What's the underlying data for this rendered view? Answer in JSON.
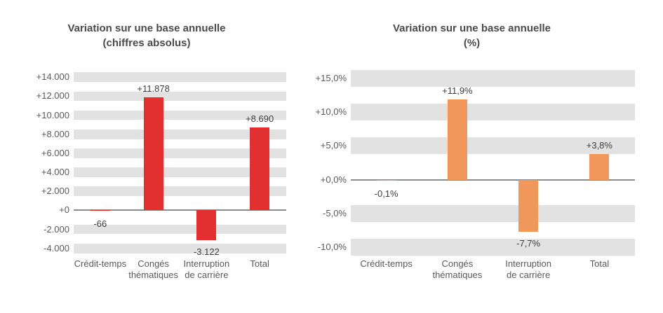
{
  "figure": {
    "background_color": "#ffffff",
    "title_color": "#4a4a4a",
    "axis_label_color": "#595959",
    "value_label_color": "#3d3d3d"
  },
  "chart_data": [
    {
      "type": "bar",
      "title": "Variation sur une base annuelle",
      "subtitle": "(chiffres absolus)",
      "categories": [
        "Crédit-temps",
        "Congés\nthématiques",
        "Interruption\nde carrière",
        "Total"
      ],
      "values": [
        -66,
        11878,
        -3122,
        8690
      ],
      "value_labels": [
        "-66",
        "+11.878",
        "-3.122",
        "+8.690"
      ],
      "yticks": [
        {
          "value": 14000,
          "label": "+14.000"
        },
        {
          "value": 12000,
          "label": "+12.000"
        },
        {
          "value": 10000,
          "label": "+10.000"
        },
        {
          "value": 8000,
          "label": "+8.000"
        },
        {
          "value": 6000,
          "label": "+6.000"
        },
        {
          "value": 4000,
          "label": "+4.000"
        },
        {
          "value": 2000,
          "label": "+2.000"
        },
        {
          "value": 0,
          "label": "+0"
        },
        {
          "value": -2000,
          "label": "-2.000"
        },
        {
          "value": -4000,
          "label": "-4.000"
        }
      ],
      "tick_interval": 2000,
      "ylim": [
        -4750,
        14750
      ],
      "xlabel": "",
      "ylabel": "",
      "grid": "banded-horizontal",
      "legend": "none",
      "bar_color": "#e23030",
      "band_color": "#e2e2e2",
      "zero_line_color": "#8c8c8c"
    },
    {
      "type": "bar",
      "title": "Variation sur une base annuelle",
      "subtitle": "(%)",
      "categories": [
        "Crédit-temps",
        "Congés\nthématiques",
        "Interruption\nde carrière",
        "Total"
      ],
      "values": [
        -0.1,
        11.9,
        -7.7,
        3.8
      ],
      "value_labels": [
        "-0,1%",
        "+11,9%",
        "-7,7%",
        "+3,8%"
      ],
      "yticks": [
        {
          "value": 15,
          "label": "+15,0%"
        },
        {
          "value": 10,
          "label": "+10,0%"
        },
        {
          "value": 5,
          "label": "+5,0%"
        },
        {
          "value": 0,
          "label": "+0,0%"
        },
        {
          "value": -5,
          "label": "-5,0%"
        },
        {
          "value": -10,
          "label": "-10,0%"
        }
      ],
      "tick_interval": 5,
      "ylim": [
        -11.25,
        16.25
      ],
      "xlabel": "",
      "ylabel": "",
      "grid": "banded-horizontal",
      "legend": "none",
      "bar_color": "#f0975c",
      "band_color": "#e2e2e2",
      "zero_line_color": "#8c8c8c"
    }
  ]
}
